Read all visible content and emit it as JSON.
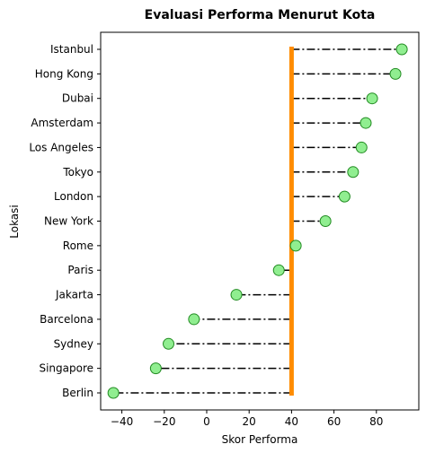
{
  "chart_data": {
    "type": "lollipop",
    "orientation": "horizontal",
    "title": "Evaluasi Performa Menurut Kota",
    "xlabel": "Skor Performa",
    "ylabel": "Lokasi",
    "xlim": [
      -50,
      100
    ],
    "xticks": [
      -40,
      -20,
      0,
      20,
      40,
      60,
      80
    ],
    "baseline": 40,
    "baseline_color": "#ff8c00",
    "stem_color": "#000000",
    "stem_style": "dash-dot",
    "marker_fill": "#90ee90",
    "marker_edge": "#228b22",
    "grid": false,
    "categories": [
      "Berlin",
      "Singapore",
      "Sydney",
      "Barcelona",
      "Jakarta",
      "Paris",
      "Rome",
      "New York",
      "London",
      "Tokyo",
      "Los Angeles",
      "Amsterdam",
      "Dubai",
      "Hong Kong",
      "Istanbul"
    ],
    "values": [
      -44,
      -24,
      -18,
      -6,
      14,
      34,
      42,
      56,
      65,
      69,
      73,
      75,
      78,
      89,
      92
    ]
  }
}
